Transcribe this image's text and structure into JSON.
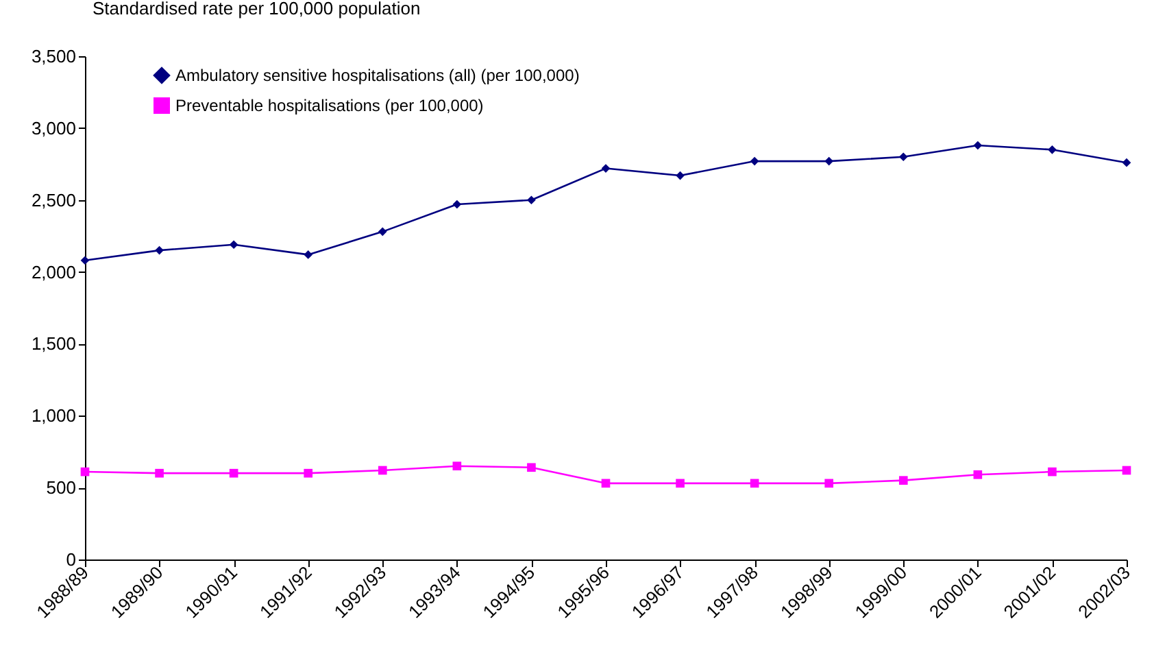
{
  "chart_data": {
    "type": "line",
    "ylabel": "Standardised rate per 100,000 population",
    "categories": [
      "1988/89",
      "1989/90",
      "1990/91",
      "1991/92",
      "1992/93",
      "1993/94",
      "1994/95",
      "1995/96",
      "1996/97",
      "1997/98",
      "1998/99",
      "1999/00",
      "2000/01",
      "2001/02",
      "2002/03"
    ],
    "series": [
      {
        "name": "Ambulatory sensitive hospitalisations (all) (per 100,000)",
        "color": "#000080",
        "marker": "diamond",
        "values": [
          2080,
          2150,
          2190,
          2120,
          2280,
          2470,
          2500,
          2720,
          2670,
          2770,
          2770,
          2800,
          2880,
          2850,
          2760
        ]
      },
      {
        "name": "Preventable hospitalisations (per 100,000)",
        "color": "#ff00ff",
        "marker": "square",
        "values": [
          610,
          600,
          600,
          600,
          620,
          650,
          640,
          530,
          530,
          530,
          530,
          550,
          590,
          610,
          620
        ]
      }
    ],
    "ylim": [
      0,
      3500
    ],
    "yticks": [
      0,
      500,
      {
        "value": 1000,
        "label": "1,000"
      },
      {
        "value": 1500,
        "label": "1,500"
      },
      {
        "value": 2000,
        "label": "2,000"
      },
      {
        "value": 2500,
        "label": "2,500"
      },
      {
        "value": 3000,
        "label": "3,000"
      },
      {
        "value": 3500,
        "label": "3,500"
      }
    ],
    "grid": false,
    "legend": "top left",
    "line_style": "solid"
  }
}
